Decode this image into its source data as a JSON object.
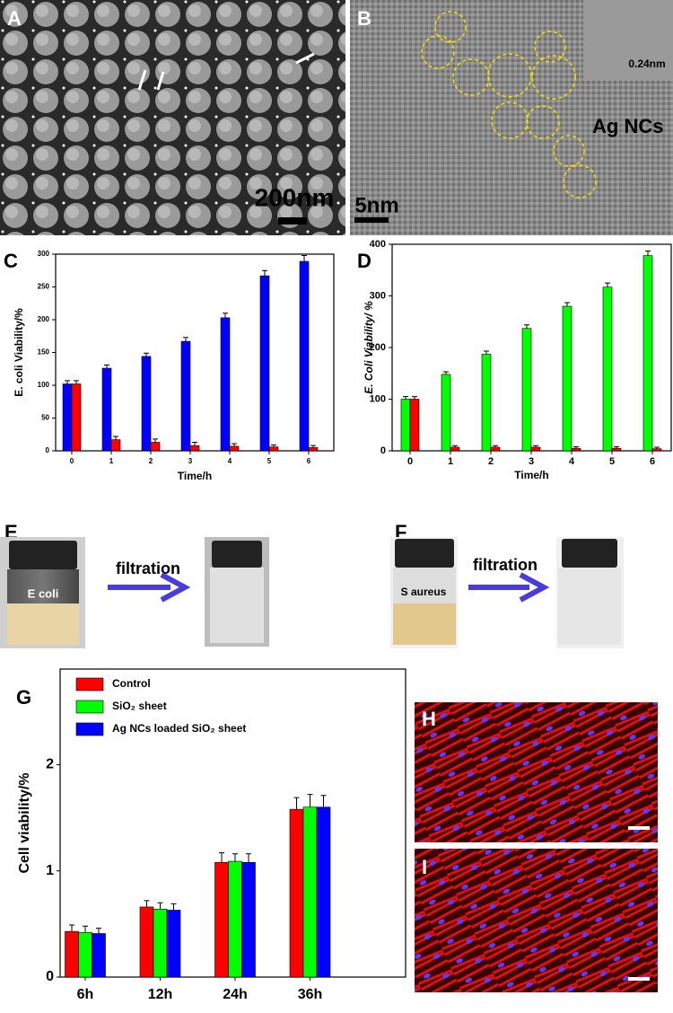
{
  "panels": {
    "A": {
      "label": "A",
      "scale_bar": "200nm"
    },
    "B": {
      "label": "B",
      "scale_bar": "5nm",
      "lattice": "0.24nm",
      "annotation": "Ag NCs"
    },
    "C": {
      "label": "C"
    },
    "D": {
      "label": "D"
    },
    "E": {
      "label": "E",
      "sample": "E coli",
      "process": "filtration"
    },
    "F": {
      "label": "F",
      "sample": "S aureus",
      "process": "filtration"
    },
    "G": {
      "label": "G"
    },
    "H": {
      "label": "H"
    },
    "I": {
      "label": "I"
    }
  },
  "chart_data": [
    {
      "type": "bar",
      "x_label": "Time/h",
      "y_label": "E. coli Viability/%",
      "categories": [
        "0",
        "1",
        "2",
        "3",
        "4",
        "5",
        "6"
      ],
      "series": [
        {
          "color": "#0000ff",
          "values": [
            102,
            126,
            144,
            167,
            203,
            267,
            289
          ],
          "errors": [
            5,
            5,
            5,
            6,
            7,
            8,
            9
          ]
        },
        {
          "color": "#ff0000",
          "values": [
            102,
            17,
            13,
            8,
            7,
            6,
            5
          ],
          "errors": [
            5,
            5,
            5,
            5,
            4,
            3,
            3
          ]
        }
      ],
      "ylim": [
        0,
        300
      ],
      "yticks": [
        0,
        50,
        100,
        150,
        200,
        250,
        300
      ]
    },
    {
      "type": "bar",
      "x_label": "Time/h",
      "y_label": "E. Coli  Viability/ %",
      "categories": [
        "0",
        "1",
        "2",
        "3",
        "4",
        "5",
        "6"
      ],
      "series": [
        {
          "color": "#00ff00",
          "values": [
            100,
            148,
            187,
            237,
            280,
            317,
            378
          ],
          "errors": [
            5,
            5,
            6,
            7,
            7,
            8,
            9
          ]
        },
        {
          "color": "#ff0000",
          "values": [
            100,
            7,
            7,
            7,
            5,
            5,
            4
          ],
          "errors": [
            5,
            3,
            3,
            3,
            3,
            3,
            3
          ]
        }
      ],
      "ylim": [
        0,
        400
      ],
      "yticks": [
        0,
        100,
        200,
        300,
        400
      ]
    },
    {
      "type": "bar",
      "y_label": "Cell viability/%",
      "categories": [
        "6h",
        "12h",
        "24h",
        "36h"
      ],
      "series": [
        {
          "name": "Control",
          "color": "#ff0000",
          "values": [
            0.43,
            0.66,
            1.08,
            1.58
          ],
          "errors": [
            0.06,
            0.06,
            0.09,
            0.11
          ]
        },
        {
          "name": "SiO₂ sheet",
          "color": "#00ff00",
          "values": [
            0.42,
            0.64,
            1.09,
            1.6
          ],
          "errors": [
            0.06,
            0.06,
            0.07,
            0.12
          ]
        },
        {
          "name": "Ag NCs loaded SiO₂ sheet",
          "color": "#0000ff",
          "values": [
            0.41,
            0.63,
            1.08,
            1.6
          ],
          "errors": [
            0.05,
            0.06,
            0.08,
            0.11
          ]
        }
      ],
      "ylim": [
        0,
        2.9
      ],
      "yticks": [
        0,
        1,
        2
      ],
      "legend": "upper-left"
    }
  ]
}
